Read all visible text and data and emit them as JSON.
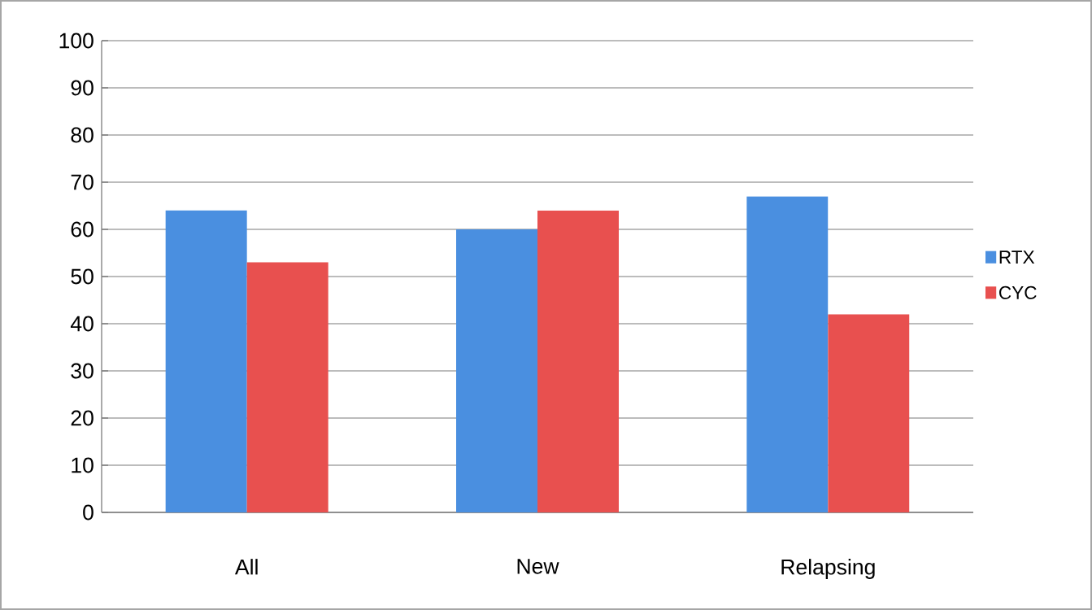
{
  "chart_data": {
    "type": "bar",
    "categories": [
      "All",
      "New",
      "Relapsing"
    ],
    "series": [
      {
        "name": "RTX",
        "color": "#4a8fe0",
        "values": [
          64,
          60,
          67
        ]
      },
      {
        "name": "CYC",
        "color": "#e8504f",
        "values": [
          53,
          64,
          42
        ]
      }
    ],
    "ylim": [
      0,
      100
    ],
    "yticks": [
      0,
      10,
      20,
      30,
      40,
      50,
      60,
      70,
      80,
      90,
      100
    ],
    "grid": "y",
    "legend": "right"
  }
}
